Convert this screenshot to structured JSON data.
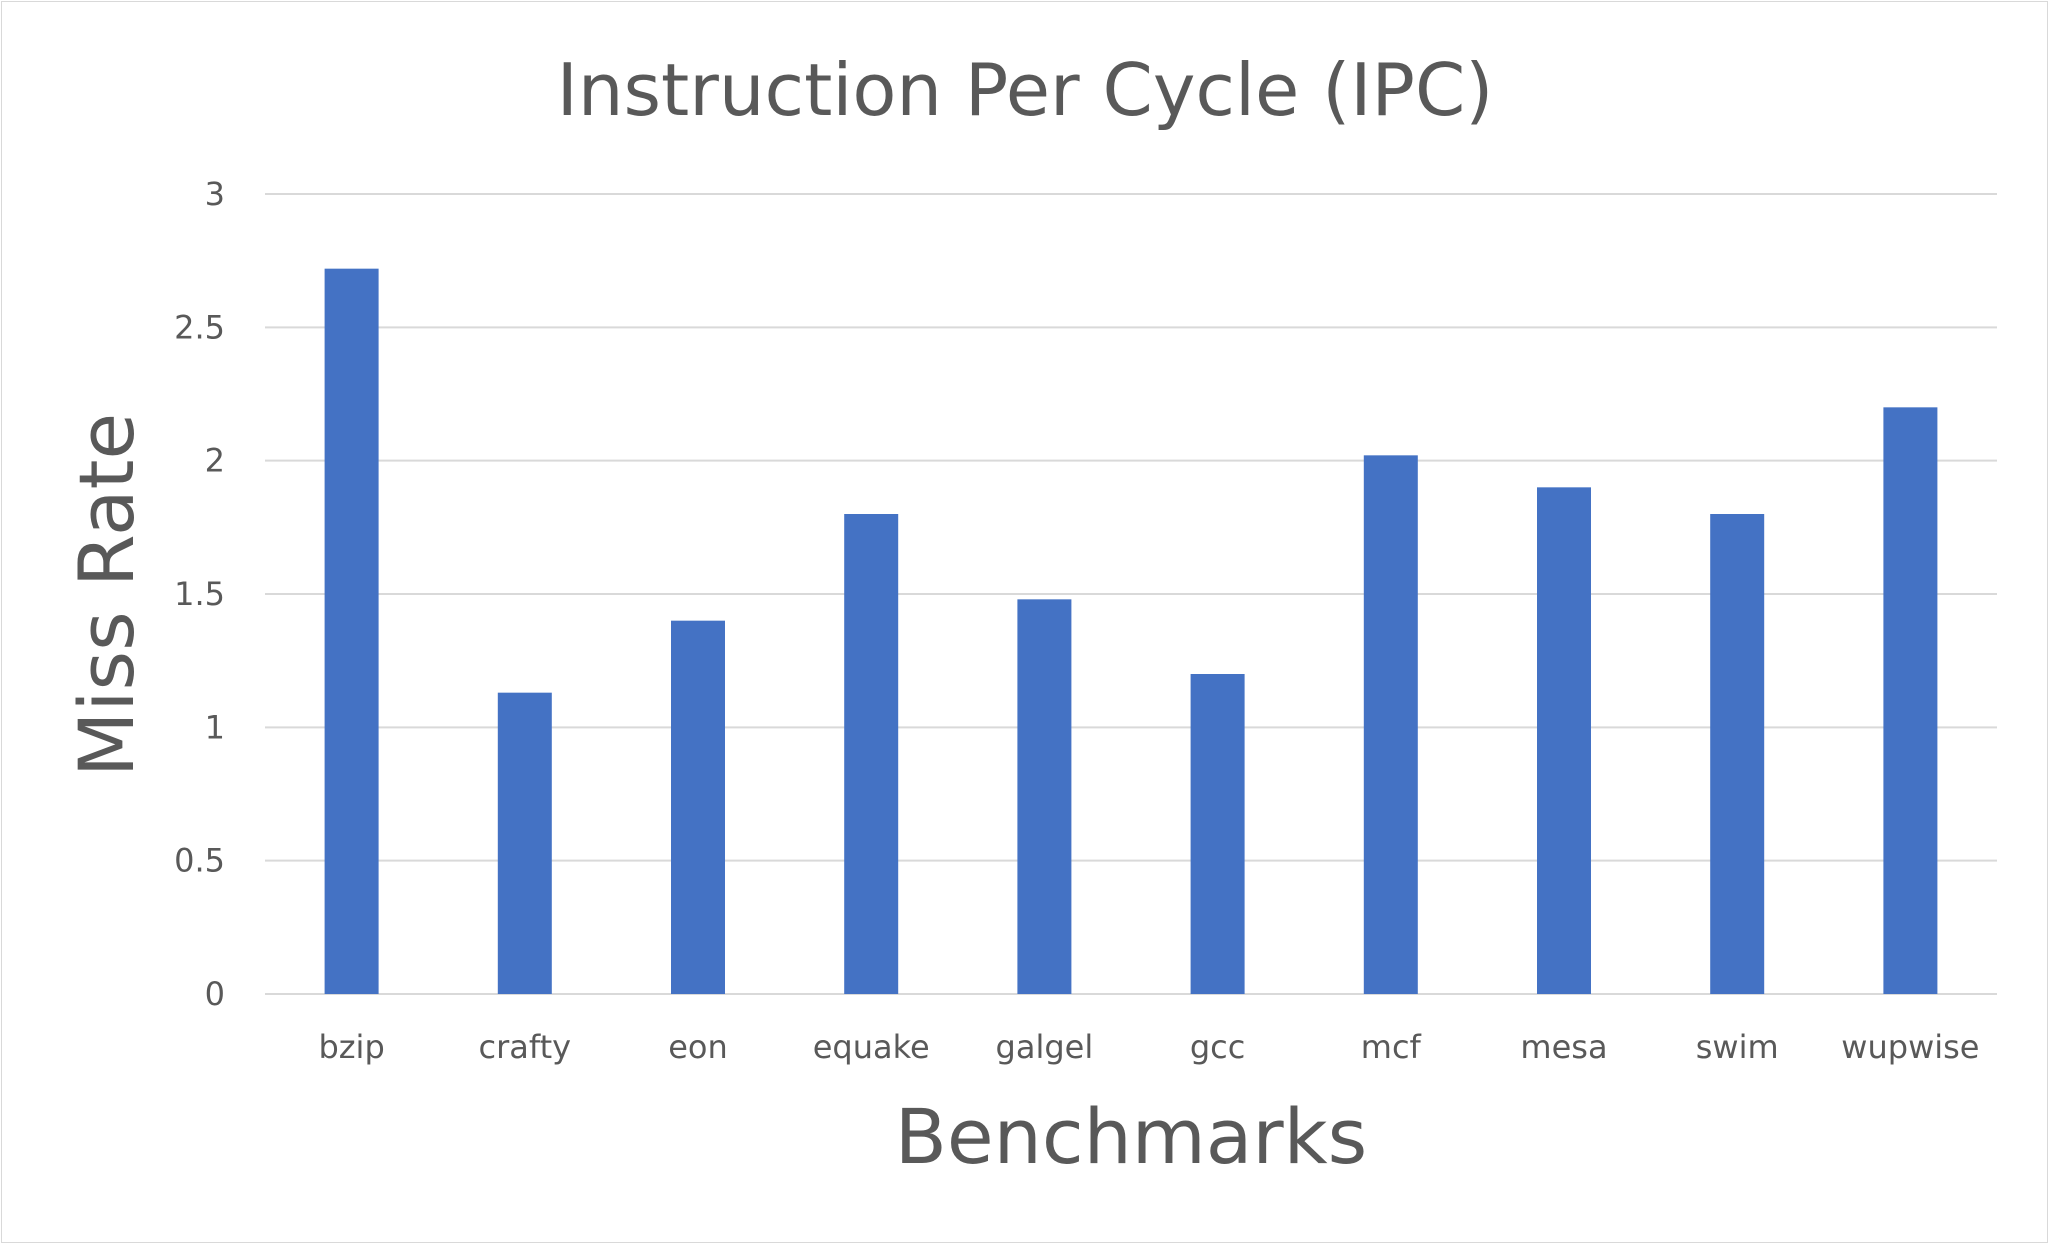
{
  "chart_data": {
    "type": "bar",
    "title": "Instruction Per Cycle (IPC)",
    "xlabel": "Benchmarks",
    "ylabel": "Miss Rate",
    "categories": [
      "bzip",
      "crafty",
      "eon",
      "equake",
      "galgel",
      "gcc",
      "mcf",
      "mesa",
      "swim",
      "wupwise"
    ],
    "values": [
      2.72,
      1.13,
      1.4,
      1.8,
      1.48,
      1.2,
      2.02,
      1.9,
      1.8,
      2.2
    ],
    "ylim": [
      0,
      3
    ],
    "yticks": [
      "0",
      "0.5",
      "1",
      "1.5",
      "2",
      "2.5",
      "3"
    ],
    "grid": true,
    "legend": "none",
    "bar_color": "#4472c4"
  }
}
